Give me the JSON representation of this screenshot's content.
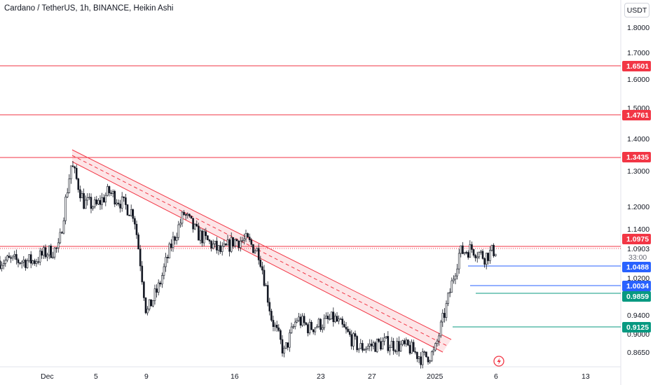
{
  "header": {
    "title": "Cardano / TetherUS, 1h, BINANCE, Heikin Ashi",
    "currency_button": "USDT"
  },
  "price_axis": {
    "ticks": [
      "1.8000",
      "1.7000",
      "1.6000",
      "1.5000",
      "1.4000",
      "1.3000",
      "1.2000",
      "1.1400",
      "1.0903",
      "33:00",
      "1.0200",
      "0.9400",
      "0.9000",
      "0.8650"
    ]
  },
  "time_axis": {
    "ticks": [
      "Dec",
      "5",
      "9",
      "16",
      "23",
      "27",
      "2025",
      "6",
      "13"
    ]
  },
  "level_badges": [
    {
      "label": "1.6501",
      "color": "#f23645"
    },
    {
      "label": "1.4761",
      "color": "#f23645"
    },
    {
      "label": "1.3435",
      "color": "#f23645"
    },
    {
      "label": "1.0975",
      "color": "#f23645"
    },
    {
      "label": "1.0488",
      "color": "#2962ff"
    },
    {
      "label": "1.0034",
      "color": "#2962ff"
    },
    {
      "label": "0.9859",
      "color": "#089981"
    },
    {
      "label": "0.9125",
      "color": "#089981"
    }
  ],
  "chart_data": {
    "type": "candlestick",
    "title": "Cardano / TetherUS, 1h, BINANCE, Heikin Ashi",
    "x_range": [
      "Nov 30 2024",
      "Jan 14 2025"
    ],
    "ylim": [
      0.84,
      1.86
    ],
    "y_scale": "log",
    "current_price": 1.0903,
    "countdown": "33:00",
    "price_path": [
      {
        "x": "Nov 30",
        "y": 1.06
      },
      {
        "x": "Dec 1",
        "y": 1.08
      },
      {
        "x": "Dec 2",
        "y": 1.09
      },
      {
        "x": "Dec 3",
        "y": 1.32
      },
      {
        "x": "Dec 4",
        "y": 1.21
      },
      {
        "x": "Dec 5",
        "y": 1.2
      },
      {
        "x": "Dec 6",
        "y": 1.24
      },
      {
        "x": "Dec 8",
        "y": 1.18
      },
      {
        "x": "Dec 9",
        "y": 0.94
      },
      {
        "x": "Dec 10",
        "y": 1.0
      },
      {
        "x": "Dec 11",
        "y": 1.1
      },
      {
        "x": "Dec 12",
        "y": 1.18
      },
      {
        "x": "Dec 13",
        "y": 1.13
      },
      {
        "x": "Dec 15",
        "y": 1.08
      },
      {
        "x": "Dec 16",
        "y": 1.11
      },
      {
        "x": "Dec 17",
        "y": 1.11
      },
      {
        "x": "Dec 18",
        "y": 1.08
      },
      {
        "x": "Dec 19",
        "y": 0.93
      },
      {
        "x": "Dec 20",
        "y": 0.86
      },
      {
        "x": "Dec 21",
        "y": 0.93
      },
      {
        "x": "Dec 22",
        "y": 0.91
      },
      {
        "x": "Dec 24",
        "y": 0.93
      },
      {
        "x": "Dec 26",
        "y": 0.87
      },
      {
        "x": "Dec 28",
        "y": 0.88
      },
      {
        "x": "Dec 30",
        "y": 0.87
      },
      {
        "x": "Dec 31",
        "y": 0.85
      },
      {
        "x": "Jan 1",
        "y": 0.86
      },
      {
        "x": "Jan 2",
        "y": 0.96
      },
      {
        "x": "Jan 3",
        "y": 1.08
      },
      {
        "x": "Jan 4",
        "y": 1.09
      },
      {
        "x": "Jan 5",
        "y": 1.07
      },
      {
        "x": "Jan 6",
        "y": 1.09
      }
    ],
    "trend_channel": {
      "start": {
        "x": "Dec 3",
        "y_upper": 1.36,
        "y_lower": 1.33
      },
      "end": {
        "x": "Jan 2",
        "y_upper": 0.88,
        "y_lower": 0.86
      },
      "color": "#f23645"
    },
    "horizontal_levels": [
      {
        "price": 1.6501,
        "color": "#f23645",
        "style": "solid"
      },
      {
        "price": 1.4761,
        "color": "#f23645",
        "style": "solid"
      },
      {
        "price": 1.3435,
        "color": "#f23645",
        "style": "solid"
      },
      {
        "price": 1.0975,
        "color": "#f23645",
        "style": "solid"
      },
      {
        "price": 1.0903,
        "color": "#f23645",
        "style": "dotted"
      },
      {
        "price": 1.0488,
        "color": "#2962ff",
        "style": "solid"
      },
      {
        "price": 1.0034,
        "color": "#2962ff",
        "style": "solid"
      },
      {
        "price": 0.9859,
        "color": "#089981",
        "style": "solid"
      },
      {
        "price": 0.9125,
        "color": "#089981",
        "style": "solid"
      }
    ]
  }
}
